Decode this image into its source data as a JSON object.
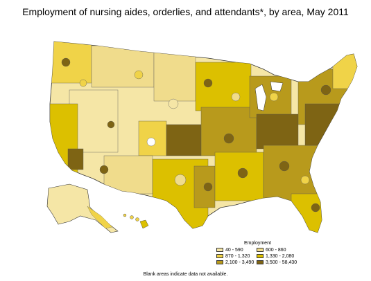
{
  "title": "Employment of nursing aides, orderlies, and attendants*, by area, May 2011",
  "legend": {
    "title": "Employment",
    "items": [
      {
        "label": "40 - 590",
        "color": "#f5e6a6"
      },
      {
        "label": "600 - 860",
        "color": "#f0dc8c"
      },
      {
        "label": "870 - 1,320",
        "color": "#f0d348"
      },
      {
        "label": "1,330 - 2,080",
        "color": "#dcc000"
      },
      {
        "label": "2,100 - 3,490",
        "color": "#b89a1c"
      },
      {
        "label": "3,500 - 58,430",
        "color": "#7e6414"
      }
    ]
  },
  "note": "Blank areas indicate data not available."
}
